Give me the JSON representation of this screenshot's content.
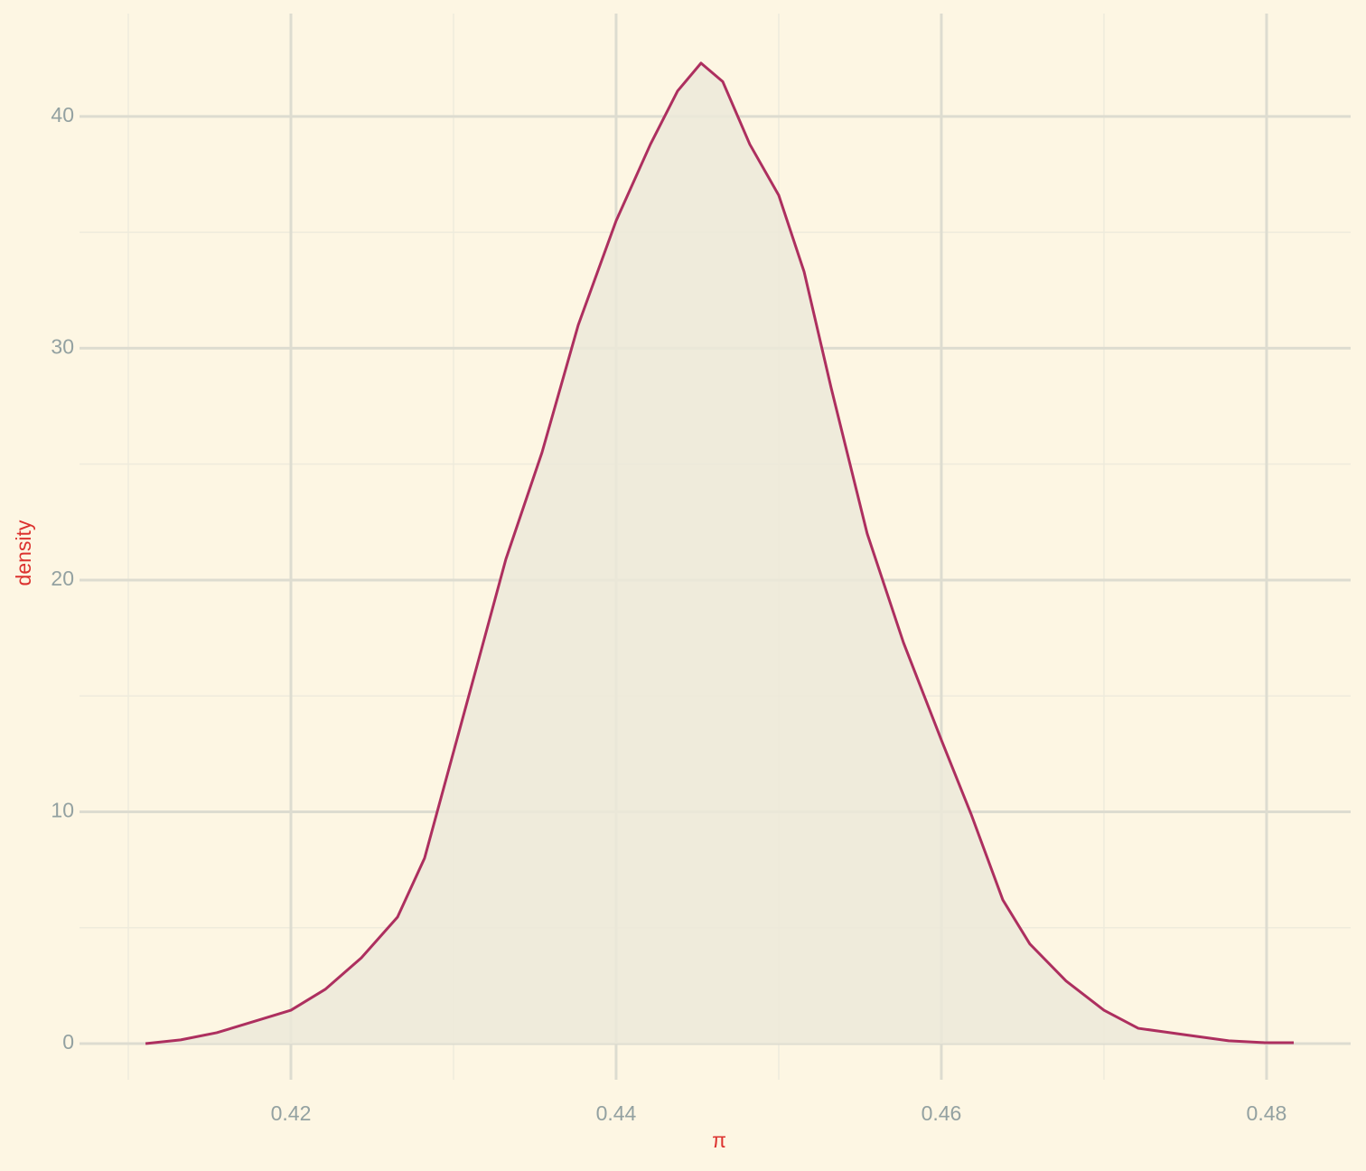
{
  "chart_data": {
    "type": "density",
    "x_label": "π",
    "y_label": "density",
    "x": [
      0.41106,
      0.41322,
      0.41544,
      0.41767,
      0.42,
      0.42211,
      0.42433,
      0.42656,
      0.42822,
      0.42989,
      0.43156,
      0.43322,
      0.43544,
      0.43767,
      0.44,
      0.44211,
      0.44378,
      0.44522,
      0.44656,
      0.44822,
      0.45,
      0.45156,
      0.45322,
      0.45544,
      0.45767,
      0.46,
      0.46183,
      0.46378,
      0.46544,
      0.46767,
      0.47,
      0.47211,
      0.47489,
      0.47767,
      0.47989,
      0.48167
    ],
    "values": [
      0,
      0.16,
      0.47,
      0.94,
      1.44,
      2.34,
      3.7,
      5.46,
      8.0,
      12.3,
      16.6,
      20.9,
      25.5,
      31.0,
      35.5,
      38.8,
      41.1,
      42.3,
      41.5,
      38.8,
      36.6,
      33.3,
      28.3,
      22.0,
      17.3,
      13.1,
      9.9,
      6.2,
      4.3,
      2.7,
      1.44,
      0.66,
      0.39,
      0.12,
      0.04,
      0.04
    ],
    "color": "#ad2f5f",
    "fill": "#ece9d9",
    "xlim": [
      0.407,
      0.48517
    ],
    "ylim": [
      -1.56,
      44.44
    ],
    "xticks": [
      0.42,
      0.44,
      0.46,
      0.48
    ],
    "yticks": [
      0,
      10,
      20,
      30,
      40
    ],
    "x_minor": [
      0.41,
      0.43,
      0.45,
      0.47
    ],
    "y_minor": [
      5,
      15,
      25,
      35
    ],
    "grid": true
  }
}
